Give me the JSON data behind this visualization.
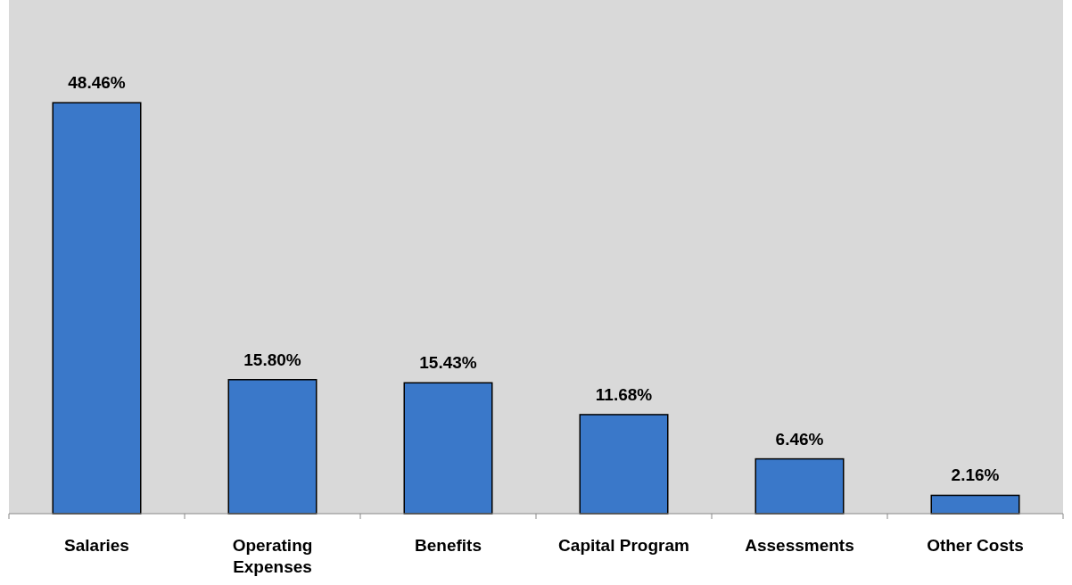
{
  "chart_data": {
    "type": "bar",
    "categories": [
      "Salaries",
      "Operating Expenses",
      "Benefits",
      "Capital Program",
      "Assessments",
      "Other Costs"
    ],
    "values": [
      48.46,
      15.8,
      15.43,
      11.68,
      6.46,
      2.16
    ],
    "value_labels": [
      "48.46%",
      "15.80%",
      "15.43%",
      "11.68%",
      "6.46%",
      "2.16%"
    ],
    "color": "#3a78c9",
    "grid": false
  }
}
